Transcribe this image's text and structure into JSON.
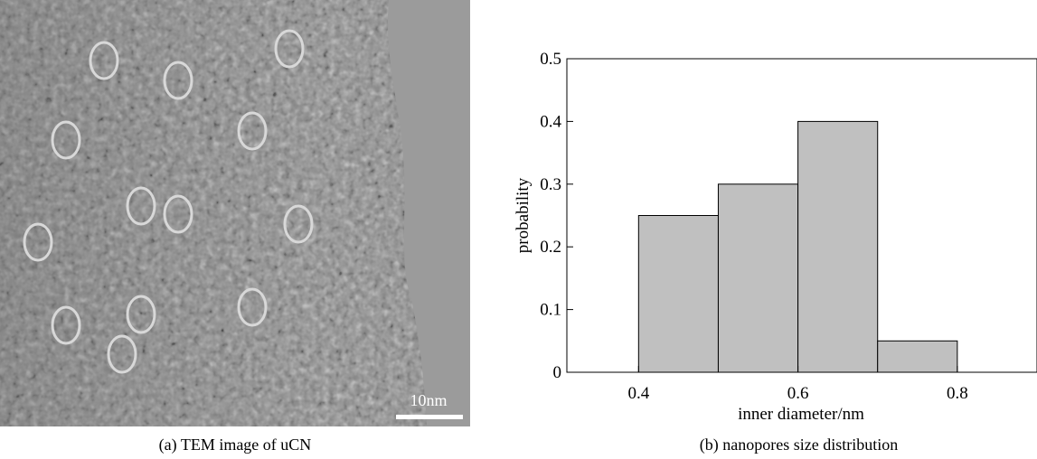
{
  "captions": {
    "left": "(a) TEM image of uCN",
    "right": "(b) nanopores size distribution"
  },
  "tem_image": {
    "scale_bar_label": "10nm",
    "circle_color": "#d8d8d8"
  },
  "chart_data": {
    "type": "bar",
    "bins": [
      {
        "from": 0.4,
        "to": 0.5,
        "value": 0.25
      },
      {
        "from": 0.5,
        "to": 0.6,
        "value": 0.3
      },
      {
        "from": 0.6,
        "to": 0.7,
        "value": 0.4
      },
      {
        "from": 0.7,
        "to": 0.8,
        "value": 0.05
      }
    ],
    "xlabel": "inner diameter/nm",
    "ylabel": "probability",
    "xlim": [
      0.31,
      0.9
    ],
    "ylim": [
      0,
      0.5
    ],
    "xticks": [
      0.4,
      0.6,
      0.8
    ],
    "xtick_labels": [
      "0.4",
      "0.6",
      "0.8"
    ],
    "yticks": [
      0,
      0.1,
      0.2,
      0.3,
      0.4,
      0.5
    ],
    "ytick_labels": [
      "0",
      "0.1",
      "0.2",
      "0.3",
      "0.4",
      "0.5"
    ],
    "bar_color": "#c0c0c0",
    "grid": false
  }
}
